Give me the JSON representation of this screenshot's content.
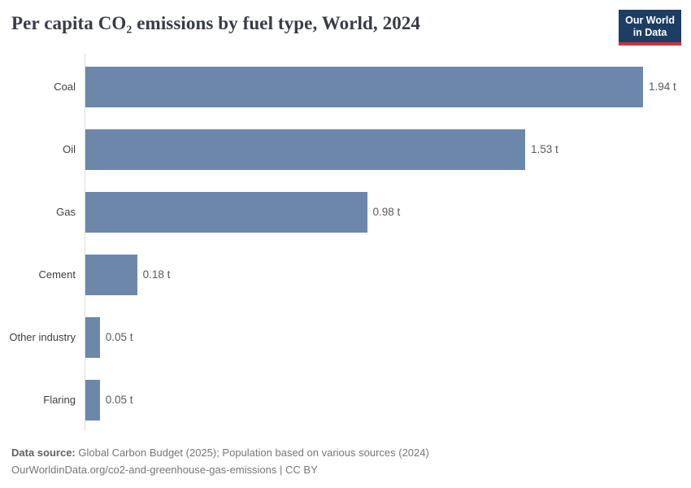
{
  "header": {
    "title": "Per capita CO₂ emissions by fuel type, World, 2024",
    "logo": {
      "line1": "Our World",
      "line2": "in Data"
    }
  },
  "chart_data": {
    "type": "bar",
    "orientation": "horizontal",
    "title": "Per capita CO₂ emissions by fuel type, World, 2024",
    "categories": [
      "Coal",
      "Oil",
      "Gas",
      "Cement",
      "Other industry",
      "Flaring"
    ],
    "values": [
      1.94,
      1.53,
      0.98,
      0.18,
      0.05,
      0.05
    ],
    "value_labels": [
      "1.94 t",
      "1.53 t",
      "0.98 t",
      "0.18 t",
      "0.05 t",
      "0.05 t"
    ],
    "unit": "t",
    "xlim": [
      0,
      1.94
    ],
    "grid": false,
    "legend": "none"
  },
  "footer": {
    "data_source_label": "Data source:",
    "data_source_text": "Global Carbon Budget (2025); Population based on various sources (2024)",
    "citation_url": "OurWorldinData.org/co2-and-greenhouse-gas-emissions",
    "separator": "|",
    "license": "CC BY"
  },
  "colors": {
    "bar": "#6d87ab",
    "logo_background": "#1d3d63",
    "logo_accent": "#d0313b",
    "axis_line": "#dcdcdc"
  }
}
